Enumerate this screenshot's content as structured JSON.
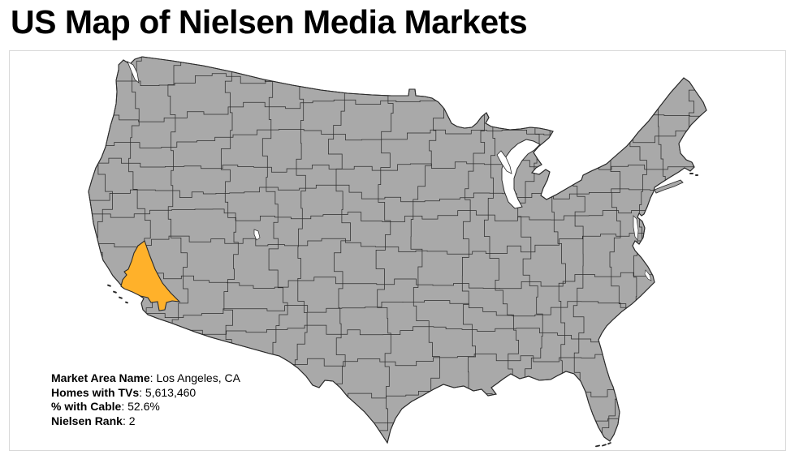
{
  "page": {
    "title": "US Map of Nielsen Media Markets"
  },
  "map_panel": {
    "description": "Choropleth map of US Nielsen media markets (DMAs)",
    "highlighted_market": "Los Angeles, CA",
    "selected_market": {
      "market_area_name": "Los Angeles, CA",
      "homes_with_tvs": "5,613,460",
      "pct_with_cable": "52.6%",
      "nielsen_rank": "2"
    },
    "tooltip_fields": [
      {
        "label": "Market Area Name",
        "value": "Los Angeles, CA"
      },
      {
        "label": "Homes with TVs",
        "value": "5,613,460"
      },
      {
        "label": "% with Cable",
        "value": "52.6%"
      },
      {
        "label": "Nielsen Rank",
        "value": "2"
      }
    ],
    "colors": {
      "market_fill": "#A9A9A9",
      "market_border": "#2B2B2B",
      "dma_boundary": "#2E2E2E",
      "highlight_fill": "#FFB12A",
      "panel_border": "#D9D9D9",
      "water_background": "#FFFFFF"
    }
  }
}
